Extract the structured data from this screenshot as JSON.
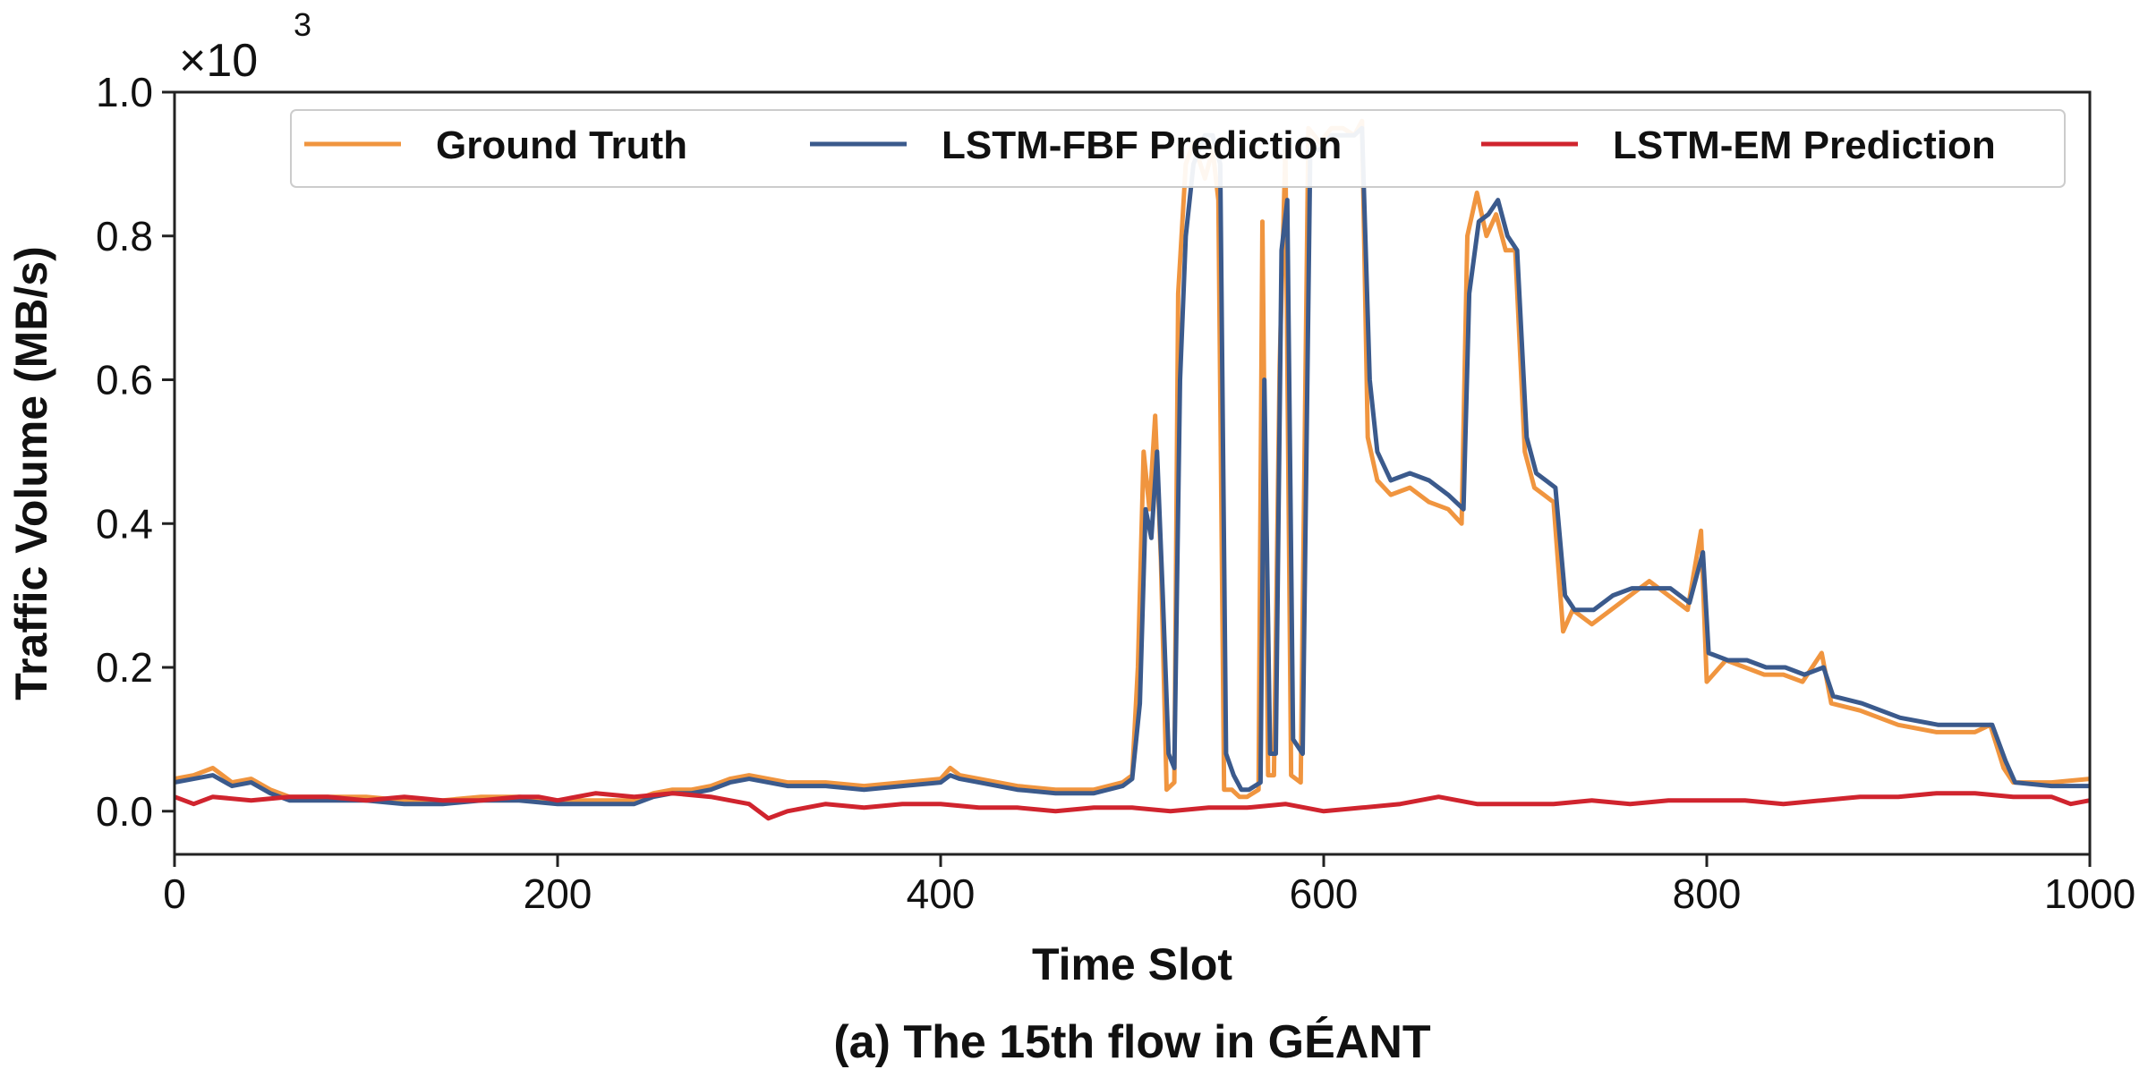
{
  "chart_data": {
    "type": "line",
    "caption": "(a) The 15th flow in GÉANT",
    "xlabel": "Time Slot",
    "ylabel": "Traffic Volume (MB/s)",
    "y_multiplier_label": "×10",
    "y_multiplier_exponent": "3",
    "xlim": [
      0,
      1000
    ],
    "ylim": [
      -0.06,
      1.0
    ],
    "x_ticks": [
      0,
      200,
      400,
      600,
      800,
      1000
    ],
    "x_tick_labels": [
      "0",
      "200",
      "400",
      "600",
      "800",
      "1000"
    ],
    "y_ticks": [
      0.0,
      0.2,
      0.4,
      0.6,
      0.8,
      1.0
    ],
    "y_tick_labels": [
      "0.0",
      "0.2",
      "0.4",
      "0.6",
      "0.8",
      "1.0"
    ],
    "grid": false,
    "legend_position": "top",
    "series": [
      {
        "name": "Ground Truth",
        "color": "#F0953F",
        "points": [
          [
            0,
            0.045
          ],
          [
            10,
            0.05
          ],
          [
            20,
            0.06
          ],
          [
            30,
            0.04
          ],
          [
            40,
            0.045
          ],
          [
            50,
            0.03
          ],
          [
            60,
            0.02
          ],
          [
            80,
            0.02
          ],
          [
            100,
            0.02
          ],
          [
            120,
            0.015
          ],
          [
            140,
            0.015
          ],
          [
            160,
            0.02
          ],
          [
            180,
            0.02
          ],
          [
            200,
            0.015
          ],
          [
            220,
            0.015
          ],
          [
            240,
            0.015
          ],
          [
            250,
            0.025
          ],
          [
            260,
            0.03
          ],
          [
            270,
            0.03
          ],
          [
            280,
            0.035
          ],
          [
            290,
            0.045
          ],
          [
            300,
            0.05
          ],
          [
            310,
            0.045
          ],
          [
            320,
            0.04
          ],
          [
            340,
            0.04
          ],
          [
            360,
            0.035
          ],
          [
            380,
            0.04
          ],
          [
            400,
            0.045
          ],
          [
            405,
            0.06
          ],
          [
            410,
            0.05
          ],
          [
            420,
            0.045
          ],
          [
            440,
            0.035
          ],
          [
            460,
            0.03
          ],
          [
            480,
            0.03
          ],
          [
            495,
            0.04
          ],
          [
            500,
            0.05
          ],
          [
            503,
            0.2
          ],
          [
            506,
            0.5
          ],
          [
            509,
            0.42
          ],
          [
            512,
            0.55
          ],
          [
            515,
            0.35
          ],
          [
            518,
            0.03
          ],
          [
            522,
            0.04
          ],
          [
            524,
            0.72
          ],
          [
            528,
            0.9
          ],
          [
            532,
            0.93
          ],
          [
            538,
            0.88
          ],
          [
            542,
            0.92
          ],
          [
            545,
            0.85
          ],
          [
            548,
            0.03
          ],
          [
            552,
            0.03
          ],
          [
            556,
            0.02
          ],
          [
            560,
            0.02
          ],
          [
            566,
            0.03
          ],
          [
            568,
            0.82
          ],
          [
            571,
            0.05
          ],
          [
            574,
            0.05
          ],
          [
            577,
            0.62
          ],
          [
            580,
            0.92
          ],
          [
            583,
            0.05
          ],
          [
            588,
            0.04
          ],
          [
            592,
            0.95
          ],
          [
            598,
            0.93
          ],
          [
            604,
            0.95
          ],
          [
            610,
            0.95
          ],
          [
            616,
            0.94
          ],
          [
            620,
            0.96
          ],
          [
            623,
            0.52
          ],
          [
            628,
            0.46
          ],
          [
            635,
            0.44
          ],
          [
            645,
            0.45
          ],
          [
            655,
            0.43
          ],
          [
            665,
            0.42
          ],
          [
            672,
            0.4
          ],
          [
            675,
            0.8
          ],
          [
            680,
            0.86
          ],
          [
            685,
            0.8
          ],
          [
            690,
            0.83
          ],
          [
            695,
            0.78
          ],
          [
            700,
            0.78
          ],
          [
            705,
            0.5
          ],
          [
            710,
            0.45
          ],
          [
            715,
            0.44
          ],
          [
            720,
            0.43
          ],
          [
            725,
            0.25
          ],
          [
            730,
            0.28
          ],
          [
            740,
            0.26
          ],
          [
            750,
            0.28
          ],
          [
            760,
            0.3
          ],
          [
            770,
            0.32
          ],
          [
            780,
            0.3
          ],
          [
            790,
            0.28
          ],
          [
            797,
            0.39
          ],
          [
            800,
            0.18
          ],
          [
            810,
            0.21
          ],
          [
            820,
            0.2
          ],
          [
            830,
            0.19
          ],
          [
            840,
            0.19
          ],
          [
            850,
            0.18
          ],
          [
            860,
            0.22
          ],
          [
            865,
            0.15
          ],
          [
            880,
            0.14
          ],
          [
            900,
            0.12
          ],
          [
            920,
            0.11
          ],
          [
            940,
            0.11
          ],
          [
            948,
            0.12
          ],
          [
            955,
            0.06
          ],
          [
            960,
            0.04
          ],
          [
            980,
            0.04
          ],
          [
            1000,
            0.045
          ]
        ]
      },
      {
        "name": "LSTM-FBF Prediction",
        "color": "#3B5A8C",
        "points": [
          [
            0,
            0.04
          ],
          [
            10,
            0.045
          ],
          [
            20,
            0.05
          ],
          [
            30,
            0.035
          ],
          [
            40,
            0.04
          ],
          [
            50,
            0.025
          ],
          [
            60,
            0.015
          ],
          [
            80,
            0.015
          ],
          [
            100,
            0.015
          ],
          [
            120,
            0.01
          ],
          [
            140,
            0.01
          ],
          [
            160,
            0.015
          ],
          [
            180,
            0.015
          ],
          [
            200,
            0.01
          ],
          [
            220,
            0.01
          ],
          [
            240,
            0.01
          ],
          [
            250,
            0.02
          ],
          [
            260,
            0.025
          ],
          [
            270,
            0.025
          ],
          [
            280,
            0.03
          ],
          [
            290,
            0.04
          ],
          [
            300,
            0.045
          ],
          [
            310,
            0.04
          ],
          [
            320,
            0.035
          ],
          [
            340,
            0.035
          ],
          [
            360,
            0.03
          ],
          [
            380,
            0.035
          ],
          [
            400,
            0.04
          ],
          [
            405,
            0.05
          ],
          [
            410,
            0.045
          ],
          [
            420,
            0.04
          ],
          [
            440,
            0.03
          ],
          [
            460,
            0.025
          ],
          [
            480,
            0.025
          ],
          [
            495,
            0.035
          ],
          [
            500,
            0.045
          ],
          [
            504,
            0.15
          ],
          [
            507,
            0.42
          ],
          [
            510,
            0.38
          ],
          [
            513,
            0.5
          ],
          [
            516,
            0.3
          ],
          [
            519,
            0.08
          ],
          [
            522,
            0.06
          ],
          [
            525,
            0.6
          ],
          [
            528,
            0.8
          ],
          [
            532,
            0.9
          ],
          [
            538,
            0.94
          ],
          [
            542,
            0.94
          ],
          [
            546,
            0.9
          ],
          [
            549,
            0.08
          ],
          [
            553,
            0.05
          ],
          [
            557,
            0.03
          ],
          [
            561,
            0.03
          ],
          [
            567,
            0.04
          ],
          [
            569,
            0.6
          ],
          [
            572,
            0.08
          ],
          [
            575,
            0.08
          ],
          [
            578,
            0.78
          ],
          [
            581,
            0.85
          ],
          [
            584,
            0.1
          ],
          [
            589,
            0.08
          ],
          [
            593,
            0.92
          ],
          [
            598,
            0.92
          ],
          [
            604,
            0.94
          ],
          [
            610,
            0.94
          ],
          [
            616,
            0.94
          ],
          [
            620,
            0.95
          ],
          [
            624,
            0.6
          ],
          [
            628,
            0.5
          ],
          [
            635,
            0.46
          ],
          [
            645,
            0.47
          ],
          [
            655,
            0.46
          ],
          [
            665,
            0.44
          ],
          [
            673,
            0.42
          ],
          [
            676,
            0.72
          ],
          [
            681,
            0.82
          ],
          [
            686,
            0.83
          ],
          [
            691,
            0.85
          ],
          [
            696,
            0.8
          ],
          [
            701,
            0.78
          ],
          [
            706,
            0.52
          ],
          [
            711,
            0.47
          ],
          [
            716,
            0.46
          ],
          [
            721,
            0.45
          ],
          [
            726,
            0.3
          ],
          [
            731,
            0.28
          ],
          [
            741,
            0.28
          ],
          [
            751,
            0.3
          ],
          [
            761,
            0.31
          ],
          [
            771,
            0.31
          ],
          [
            781,
            0.31
          ],
          [
            791,
            0.29
          ],
          [
            798,
            0.36
          ],
          [
            801,
            0.22
          ],
          [
            811,
            0.21
          ],
          [
            821,
            0.21
          ],
          [
            831,
            0.2
          ],
          [
            841,
            0.2
          ],
          [
            851,
            0.19
          ],
          [
            861,
            0.2
          ],
          [
            866,
            0.16
          ],
          [
            881,
            0.15
          ],
          [
            901,
            0.13
          ],
          [
            921,
            0.12
          ],
          [
            941,
            0.12
          ],
          [
            949,
            0.12
          ],
          [
            956,
            0.07
          ],
          [
            961,
            0.04
          ],
          [
            980,
            0.035
          ],
          [
            1000,
            0.035
          ]
        ]
      },
      {
        "name": "LSTM-EM Prediction",
        "color": "#D0242E",
        "points": [
          [
            0,
            0.02
          ],
          [
            10,
            0.01
          ],
          [
            20,
            0.02
          ],
          [
            40,
            0.015
          ],
          [
            60,
            0.02
          ],
          [
            80,
            0.02
          ],
          [
            100,
            0.015
          ],
          [
            120,
            0.02
          ],
          [
            140,
            0.015
          ],
          [
            160,
            0.015
          ],
          [
            180,
            0.02
          ],
          [
            190,
            0.02
          ],
          [
            200,
            0.015
          ],
          [
            220,
            0.025
          ],
          [
            240,
            0.02
          ],
          [
            260,
            0.025
          ],
          [
            280,
            0.02
          ],
          [
            300,
            0.01
          ],
          [
            310,
            -0.01
          ],
          [
            320,
            0.0
          ],
          [
            340,
            0.01
          ],
          [
            360,
            0.005
          ],
          [
            380,
            0.01
          ],
          [
            400,
            0.01
          ],
          [
            420,
            0.005
          ],
          [
            440,
            0.005
          ],
          [
            460,
            0.0
          ],
          [
            480,
            0.005
          ],
          [
            500,
            0.005
          ],
          [
            520,
            0.0
          ],
          [
            540,
            0.005
          ],
          [
            560,
            0.005
          ],
          [
            580,
            0.01
          ],
          [
            600,
            0.0
          ],
          [
            620,
            0.005
          ],
          [
            640,
            0.01
          ],
          [
            660,
            0.02
          ],
          [
            680,
            0.01
          ],
          [
            700,
            0.01
          ],
          [
            720,
            0.01
          ],
          [
            740,
            0.015
          ],
          [
            760,
            0.01
          ],
          [
            780,
            0.015
          ],
          [
            800,
            0.015
          ],
          [
            820,
            0.015
          ],
          [
            840,
            0.01
          ],
          [
            860,
            0.015
          ],
          [
            880,
            0.02
          ],
          [
            900,
            0.02
          ],
          [
            920,
            0.025
          ],
          [
            940,
            0.025
          ],
          [
            960,
            0.02
          ],
          [
            980,
            0.02
          ],
          [
            990,
            0.01
          ],
          [
            1000,
            0.015
          ]
        ]
      }
    ]
  }
}
